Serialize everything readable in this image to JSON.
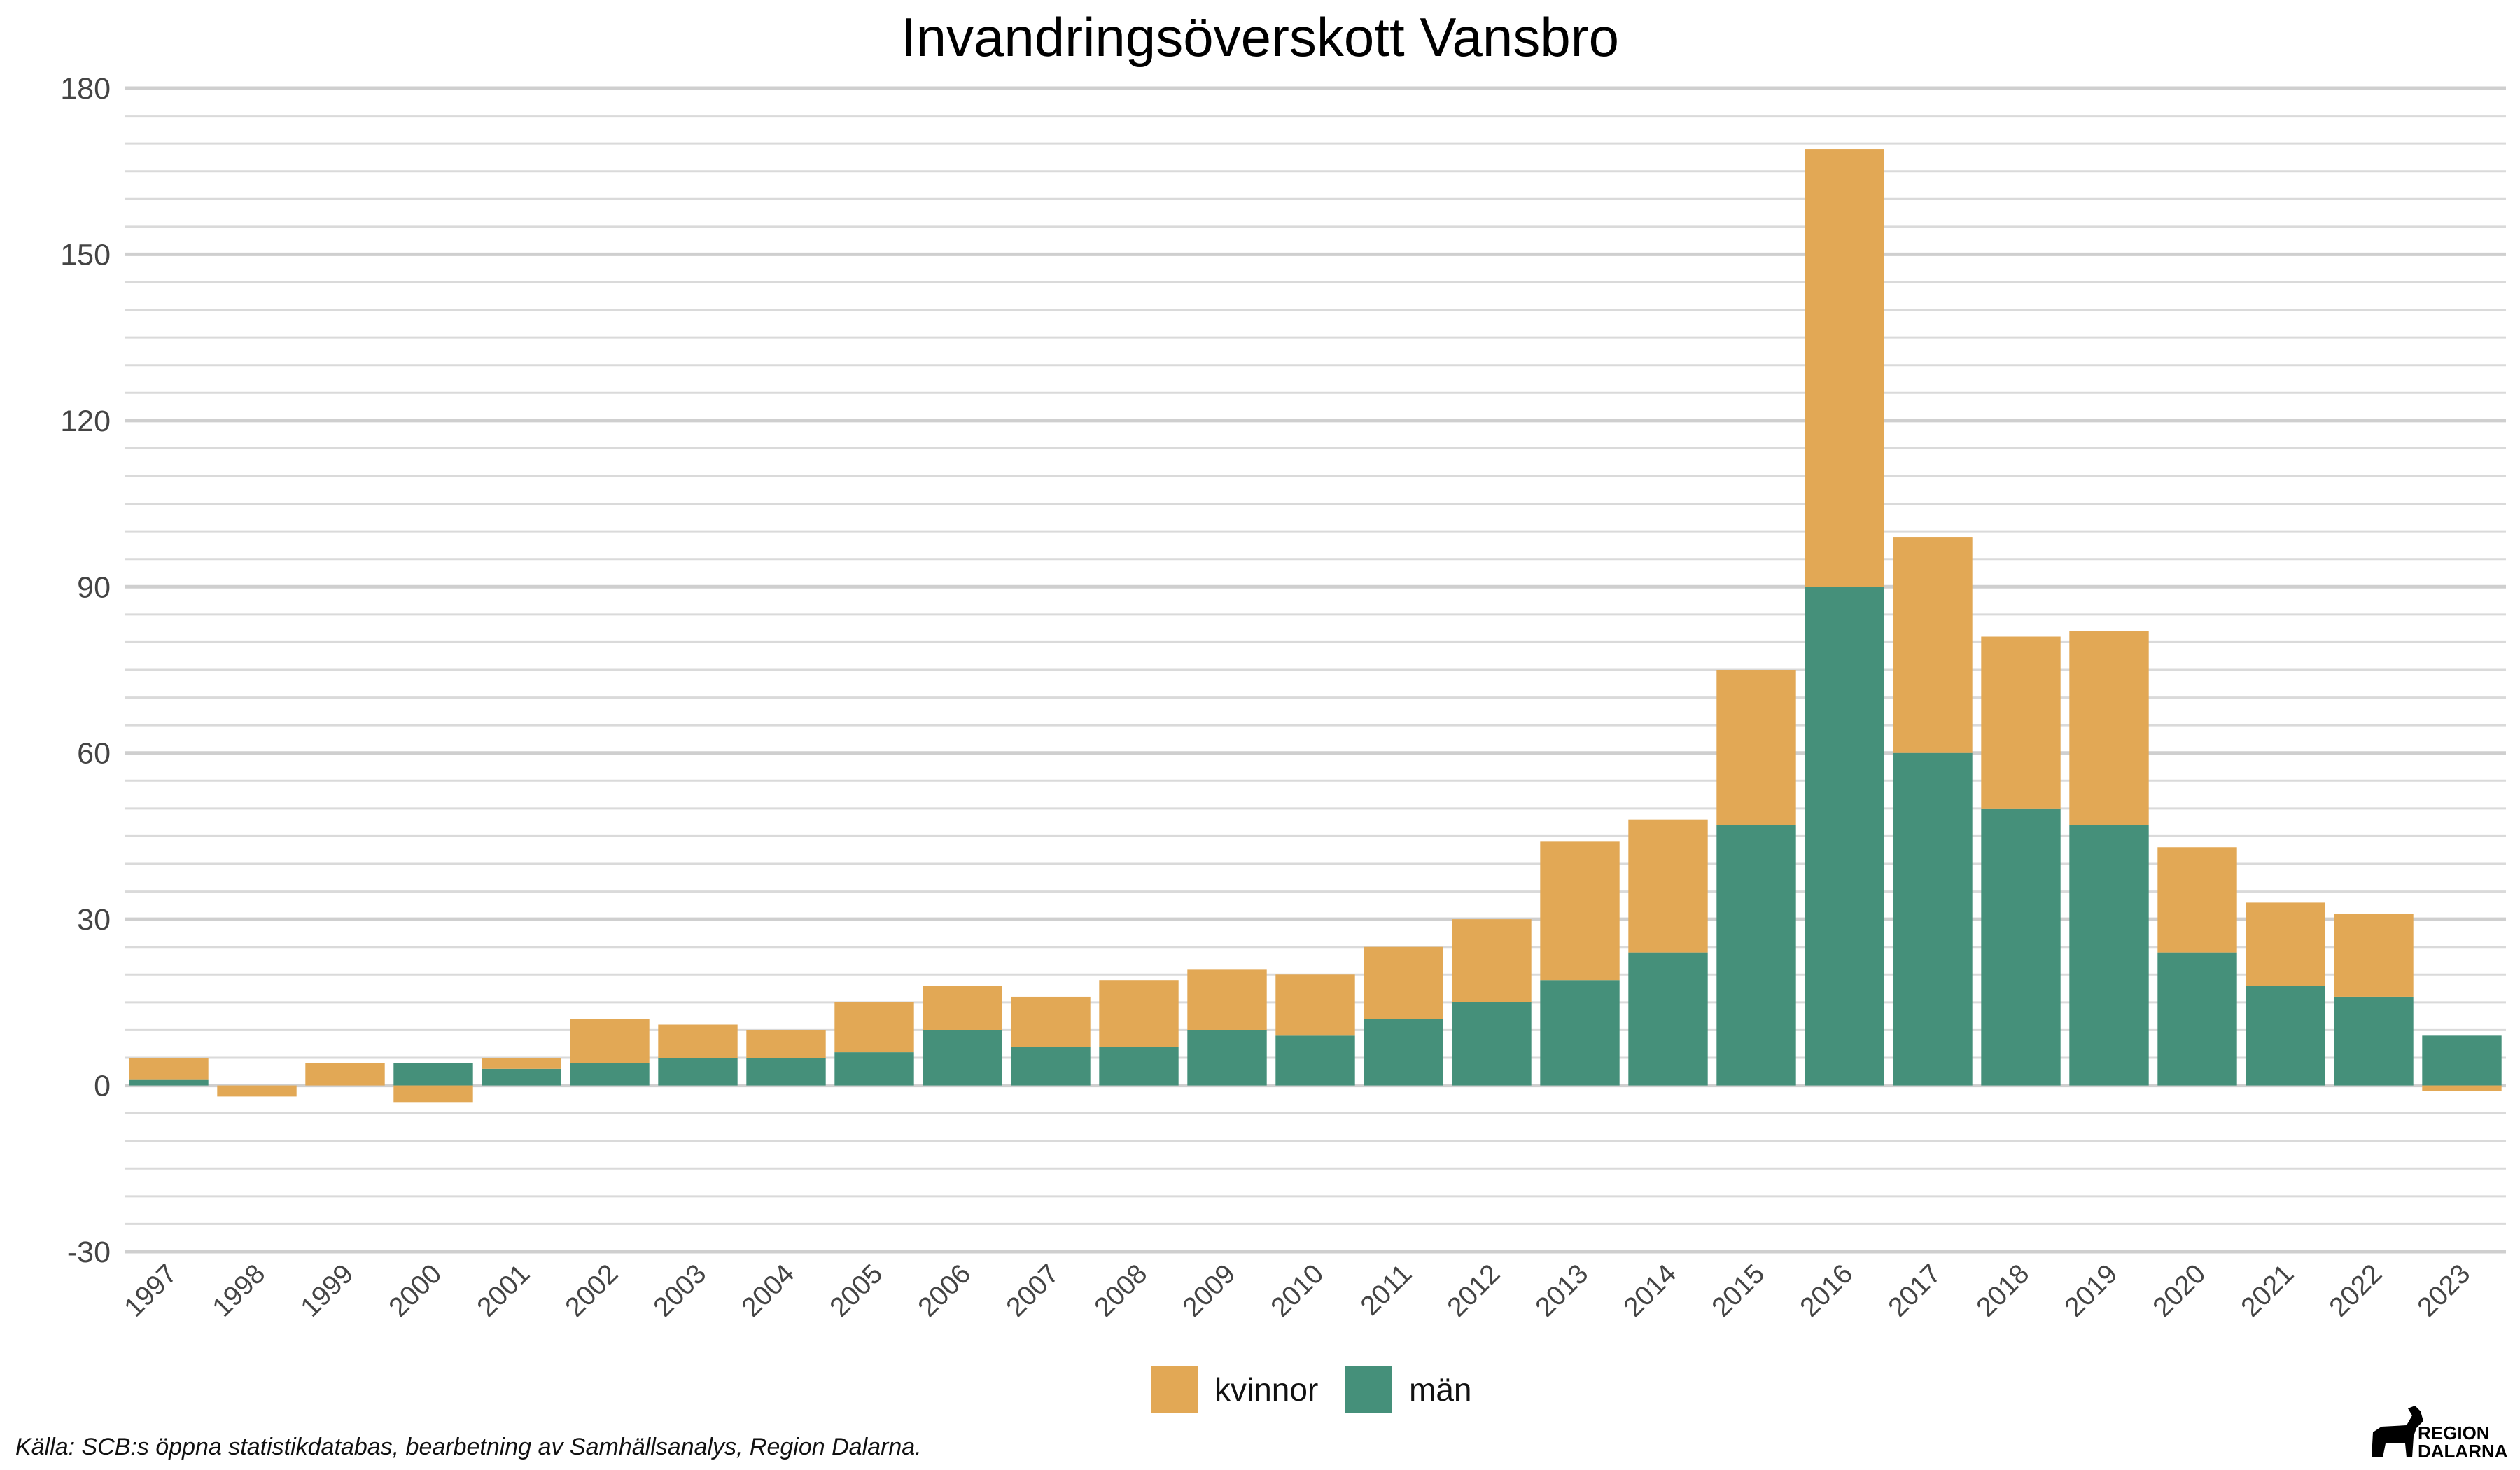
{
  "chart_data": {
    "type": "bar",
    "stacked": true,
    "title": "Invandringsöverskott Vansbro",
    "xlabel": "",
    "ylabel": "",
    "ylim": [
      -30,
      180
    ],
    "yticks": [
      -30,
      0,
      30,
      60,
      90,
      120,
      150,
      180
    ],
    "ytick_labels": [
      "-30",
      "0",
      "30",
      "60",
      "90",
      "120",
      "150",
      "180"
    ],
    "grid": true,
    "legend_position": "bottom",
    "categories": [
      "1997",
      "1998",
      "1999",
      "2000",
      "2001",
      "2002",
      "2003",
      "2004",
      "2005",
      "2006",
      "2007",
      "2008",
      "2009",
      "2010",
      "2011",
      "2012",
      "2013",
      "2014",
      "2015",
      "2016",
      "2017",
      "2018",
      "2019",
      "2020",
      "2021",
      "2022",
      "2023"
    ],
    "series": [
      {
        "name": "män",
        "color": "#45907A",
        "values": [
          1,
          0,
          0,
          4,
          3,
          4,
          5,
          5,
          6,
          10,
          7,
          7,
          10,
          9,
          12,
          15,
          19,
          24,
          47,
          90,
          60,
          50,
          47,
          24,
          18,
          16,
          9
        ]
      },
      {
        "name": "kvinnor",
        "color": "#E2A855",
        "values": [
          4,
          -2,
          4,
          -3,
          2,
          8,
          6,
          5,
          9,
          8,
          9,
          12,
          11,
          11,
          13,
          15,
          25,
          24,
          28,
          79,
          39,
          31,
          35,
          19,
          15,
          15,
          -1
        ]
      }
    ]
  },
  "caption": "Källa: SCB:s öppna statistikdatabas, bearbetning av Samhällsanalys, Region Dalarna.",
  "logo": {
    "line1": "REGION",
    "line2": "DALARNA"
  }
}
